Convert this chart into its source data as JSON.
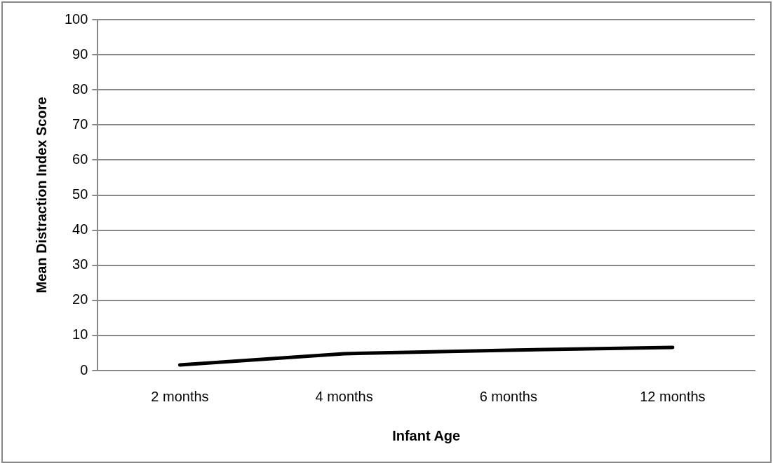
{
  "chart_data": {
    "type": "line",
    "xlabel": "Infant Age",
    "ylabel": "Mean Distraction Index Score",
    "categories": [
      "2 months",
      "4 months",
      "6 months",
      "12 months"
    ],
    "series": [
      {
        "color": "#000000",
        "values": [
          1.6,
          4.8,
          5.8,
          6.6
        ]
      }
    ],
    "ylim": [
      0,
      100
    ],
    "yticks": [
      0,
      10,
      20,
      30,
      40,
      50,
      60,
      70,
      80,
      90,
      100
    ],
    "grid": "y",
    "legend": false,
    "marker": "none",
    "line_style": "solid"
  }
}
